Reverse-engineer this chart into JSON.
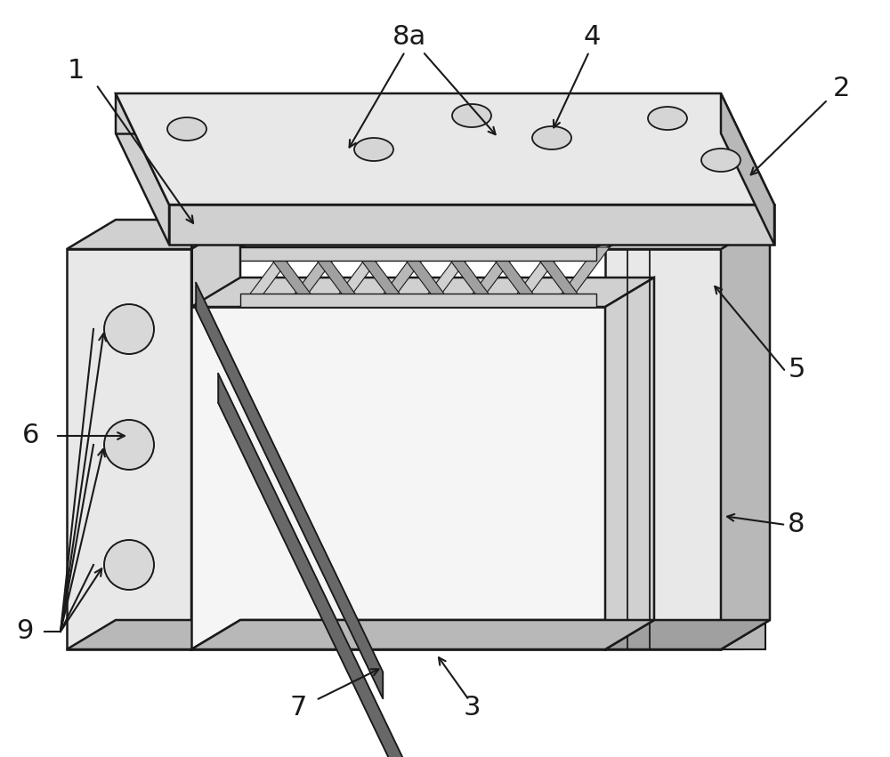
{
  "bg_color": "#ffffff",
  "line_color": "#1a1a1a",
  "figsize": [
    10.0,
    8.51
  ],
  "gray_light": "#e8e8e8",
  "gray_mid": "#d0d0d0",
  "gray_dark": "#b8b8b8",
  "gray_xdark": "#a0a0a0",
  "slot_dark": "#686868",
  "white": "#f5f5f5"
}
